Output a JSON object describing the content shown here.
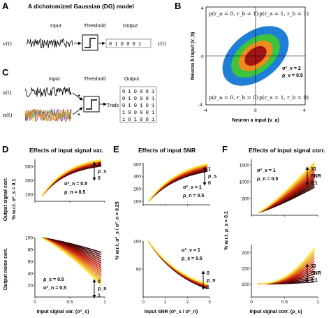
{
  "panels": {
    "A": {
      "letter": "A",
      "title": "A dichotomized Gaussian (DG) model",
      "input_label": "Input",
      "threshold_label": "Threshold",
      "output_label": "Output",
      "signal_v": "v(t)",
      "signal_r": "r(t)",
      "spikes": "0 1 0 0 0 1"
    },
    "B": {
      "letter": "B",
      "q_tl": "p(r_a = 0, r_b = 1)",
      "q_tr": "p(r_a = 1, r_b = 1)",
      "q_bl": "p(r_a = 0, r_b = 0)",
      "q_br": "p(r_a = 1, r_b = 0)",
      "annot_var": "σ²_v = 2",
      "annot_rho": "ρ_v = 0.5",
      "xlabel": "Neuron a input (v_a)",
      "ylabel": "Neuron b input (v_b)",
      "xticks": [
        "-4",
        "0",
        "4"
      ],
      "yticks": [
        "4",
        "0",
        "-4"
      ]
    },
    "C": {
      "letter": "C",
      "input_label": "Input",
      "threshold_label": "Threshold",
      "output_label": "Output",
      "s_label": "s(t)",
      "n_label": "n(t)",
      "plus1": "+",
      "plus2": "+",
      "trials_label": "Trials",
      "rows": [
        "0 1 0 0 0 1",
        "0 1 0 0 0 1",
        "0 1 0 1 0 1",
        "1 0 0 0 0 1",
        "1 0 1 0 0 1"
      ]
    },
    "D": {
      "letter": "D",
      "title": "Effects of input signal var.",
      "ylabel_top": "Output signal corr.",
      "ylabel_bottom": "Output noise corr.",
      "sub_ylabel": "% w.r.t. σ²_s = 0.1",
      "xlabel": "Input signal var. (σ²_s)",
      "top_ticks": [
        "500",
        "300",
        "100"
      ],
      "bottom_ticks": [
        "100",
        "80",
        "60",
        "40",
        "20"
      ],
      "xticks": [
        "0",
        "0.5",
        "1"
      ],
      "top_legend": {
        "hi": "1",
        "param": "ρ_s",
        "lo": "0"
      },
      "top_annot": [
        "σ²_n = 0.5",
        "ρ_n = 0.5"
      ],
      "bottom_annot": [
        "ρ_s = 0.5",
        "σ²_n = 0.5"
      ],
      "bottom_legend": {
        "hi": "0",
        "param": "ρ_n",
        "lo": "1"
      }
    },
    "E": {
      "letter": "E",
      "title": "Effects of input SNR",
      "sub_ylabel": "% w.r.t. σ²_s / σ²_n = 0.25",
      "xlabel": "Input SNR (σ²_s / σ²_n)",
      "top_ticks": [
        "400",
        "300",
        "200",
        "100"
      ],
      "bottom_ticks": [
        "100",
        "50"
      ],
      "xticks": [
        "0",
        "1",
        "2",
        "3"
      ],
      "top_legend": {
        "hi": "1",
        "param": "ρ_s",
        "lo": "0"
      },
      "top_annot": [
        "σ²_v = 1",
        "ρ_n = 0.5"
      ],
      "bottom_annot": [
        "σ²_v = 1",
        "ρ_s = 0.5"
      ],
      "bottom_legend": {
        "hi": "0",
        "param": "ρ_n",
        "lo": "1"
      }
    },
    "F": {
      "letter": "F",
      "title": "Effects of input signal corr.",
      "sub_ylabel": "% w.r.t. ρ_s = 0.1",
      "xlabel": "Input signal corr. (ρ_s)",
      "top_ticks": [
        "1500",
        "1000",
        "500"
      ],
      "bottom_ticks": [
        "200",
        "150",
        "100"
      ],
      "xticks": [
        "0",
        "0.5",
        "1"
      ],
      "top_legend": {
        "hi": "10",
        "param": "SNR",
        "lo": "0.1"
      },
      "top_annot": [
        "σ²_v = 1",
        "ρ_n = 0.5"
      ],
      "bottom_legend": {
        "hi": "10",
        "param": "SNR",
        "lo": "0.1"
      }
    }
  },
  "colors": {
    "blue": "#1f7fd6",
    "green": "#3cc53c",
    "orange": "#f08a1c",
    "darkred": "#a11515",
    "curve_dark": "#2a0000",
    "curve_red": "#d01f10",
    "curve_yellow": "#ffe83a"
  }
}
